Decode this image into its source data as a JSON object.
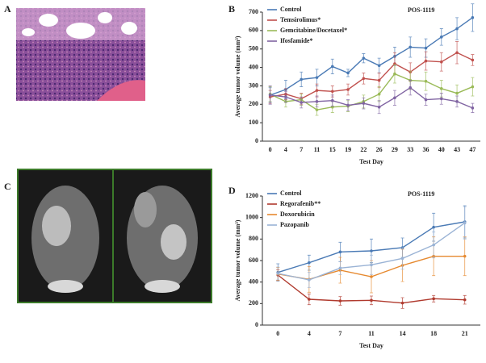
{
  "panel_labels": [
    "A",
    "B",
    "C",
    "D"
  ],
  "chart_data": [
    {
      "type": "line",
      "annotation": "POS-1119",
      "x_label": "Test Day",
      "y_label": "Average tumor volume (mm³)",
      "categories": [
        "0",
        "4",
        "7",
        "11",
        "15",
        "19",
        "22",
        "26",
        "29",
        "33",
        "36",
        "40",
        "43",
        "47"
      ],
      "ylim": [
        0,
        700
      ],
      "yticks": [
        0,
        100,
        200,
        300,
        400,
        500,
        600,
        700
      ],
      "series": [
        {
          "name": "Control",
          "color": "#4a7ab5",
          "values": [
            250,
            280,
            335,
            345,
            405,
            370,
            450,
            410,
            460,
            510,
            505,
            565,
            610,
            670
          ],
          "errors": [
            40,
            50,
            40,
            45,
            40,
            20,
            25,
            40,
            50,
            55,
            50,
            45,
            60,
            75
          ]
        },
        {
          "name": "Temsirolimus*",
          "color": "#c0504d",
          "values": [
            240,
            255,
            230,
            275,
            270,
            280,
            340,
            330,
            420,
            375,
            435,
            430,
            480,
            440
          ],
          "errors": [
            35,
            30,
            30,
            35,
            30,
            30,
            30,
            40,
            60,
            50,
            50,
            50,
            60,
            30
          ]
        },
        {
          "name": "Gemcitabine/Docetaxel*",
          "color": "#9bbb59",
          "values": [
            255,
            215,
            225,
            170,
            185,
            190,
            215,
            255,
            365,
            330,
            325,
            285,
            260,
            295
          ],
          "errors": [
            40,
            30,
            30,
            30,
            30,
            30,
            35,
            40,
            50,
            50,
            50,
            45,
            45,
            50
          ]
        },
        {
          "name": "Ifosfamide*",
          "color": "#8064a2",
          "values": [
            250,
            240,
            210,
            215,
            220,
            195,
            205,
            185,
            235,
            290,
            225,
            230,
            215,
            180
          ],
          "errors": [
            50,
            30,
            30,
            30,
            30,
            30,
            30,
            35,
            40,
            40,
            30,
            30,
            30,
            25
          ]
        }
      ]
    },
    {
      "type": "line",
      "annotation": "POS-1119",
      "x_label": "Test Day",
      "y_label": "Average tumor volume (mm³)",
      "categories": [
        "0",
        "4",
        "7",
        "11",
        "14",
        "18",
        "21"
      ],
      "ylim": [
        0,
        1200
      ],
      "yticks": [
        0,
        200,
        400,
        600,
        800,
        1000,
        1200
      ],
      "series": [
        {
          "name": "Control",
          "color": "#4a7ab5",
          "values": [
            490,
            580,
            680,
            690,
            720,
            910,
            960
          ],
          "errors": [
            80,
            70,
            90,
            110,
            90,
            130,
            150
          ]
        },
        {
          "name": "Regorafenib**",
          "color": "#b03a2e",
          "values": [
            465,
            240,
            225,
            230,
            205,
            245,
            235
          ],
          "errors": [
            50,
            50,
            40,
            40,
            50,
            30,
            40
          ]
        },
        {
          "name": "Doxorubicin",
          "color": "#e6892f",
          "values": [
            475,
            425,
            510,
            450,
            555,
            640,
            640
          ],
          "errors": [
            60,
            120,
            120,
            150,
            150,
            180,
            180
          ]
        },
        {
          "name": "Pazopanib",
          "color": "#9ab3d5",
          "values": [
            480,
            420,
            530,
            560,
            620,
            745,
            950
          ],
          "errors": [
            60,
            70,
            60,
            90,
            100,
            120,
            150
          ]
        }
      ]
    }
  ]
}
